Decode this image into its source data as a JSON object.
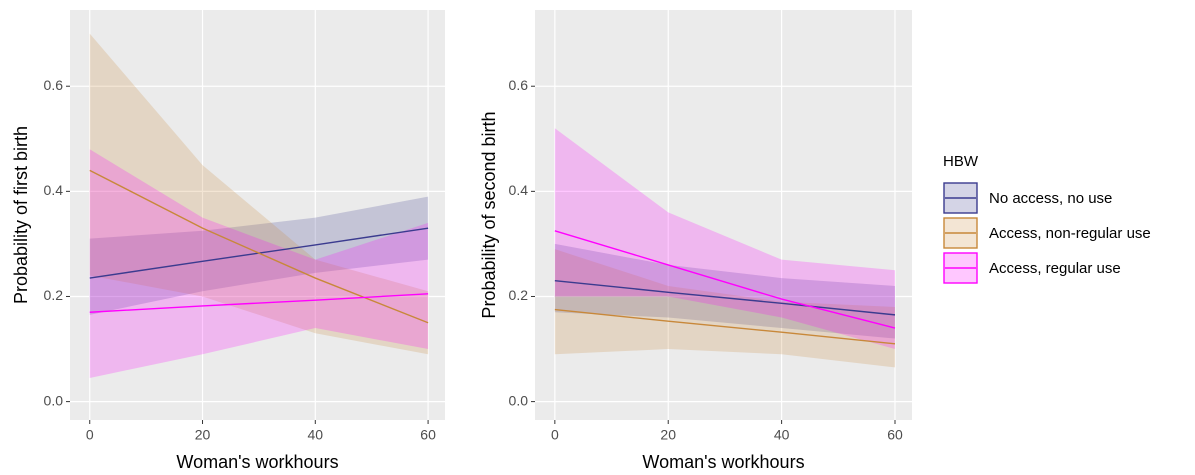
{
  "chart_data": [
    {
      "type": "line",
      "xlabel": "Woman's workhours",
      "ylabel": "Probability of first birth",
      "x": [
        0,
        20,
        40,
        60
      ],
      "xlim": [
        -3.5,
        63
      ],
      "ylim": [
        -0.035,
        0.745
      ],
      "xticks": [
        0,
        20,
        40,
        60
      ],
      "yticks": [
        {
          "value": 0,
          "label": "0.0"
        },
        0.2,
        0.4,
        0.6
      ],
      "grid": true,
      "legend": "right",
      "legend_title": "HBW",
      "series": [
        {
          "name": "No access, no use",
          "color": "#3b3b8f",
          "values": [
            0.235,
            0.267,
            0.298,
            0.33
          ],
          "lower": [
            0.165,
            0.21,
            0.245,
            0.27
          ],
          "upper": [
            0.31,
            0.325,
            0.35,
            0.39
          ]
        },
        {
          "name": "Access, non-regular use",
          "color": "#c8883a",
          "values": [
            0.44,
            0.33,
            0.235,
            0.15
          ],
          "lower": [
            0.24,
            0.2,
            0.13,
            0.09
          ],
          "upper": [
            0.7,
            0.45,
            0.27,
            0.21
          ]
        },
        {
          "name": "Access, regular use",
          "color": "#ff00ff",
          "values": [
            0.17,
            0.182,
            0.193,
            0.205
          ],
          "lower": [
            0.045,
            0.09,
            0.14,
            0.1
          ],
          "upper": [
            0.48,
            0.35,
            0.27,
            0.34
          ]
        }
      ]
    },
    {
      "type": "line",
      "xlabel": "Woman's workhours",
      "ylabel": "Probability of second birth",
      "x": [
        0,
        20,
        40,
        60
      ],
      "xlim": [
        -3.5,
        63
      ],
      "ylim": [
        -0.035,
        0.745
      ],
      "xticks": [
        0,
        20,
        40,
        60
      ],
      "yticks": [
        {
          "value": 0,
          "label": "0.0"
        },
        0.2,
        0.4,
        0.6
      ],
      "grid": true,
      "series": [
        {
          "color": "#3b3b8f",
          "values": [
            0.23,
            0.208,
            0.187,
            0.165
          ],
          "lower": [
            0.17,
            0.16,
            0.14,
            0.12
          ],
          "upper": [
            0.3,
            0.26,
            0.235,
            0.22
          ]
        },
        {
          "color": "#c8883a",
          "values": [
            0.175,
            0.153,
            0.132,
            0.11
          ],
          "lower": [
            0.09,
            0.1,
            0.09,
            0.065
          ],
          "upper": [
            0.29,
            0.22,
            0.19,
            0.18
          ]
        },
        {
          "color": "#ff00ff",
          "values": [
            0.325,
            0.26,
            0.195,
            0.14
          ],
          "lower": [
            0.2,
            0.2,
            0.16,
            0.1
          ],
          "upper": [
            0.52,
            0.36,
            0.27,
            0.25
          ]
        }
      ]
    }
  ]
}
